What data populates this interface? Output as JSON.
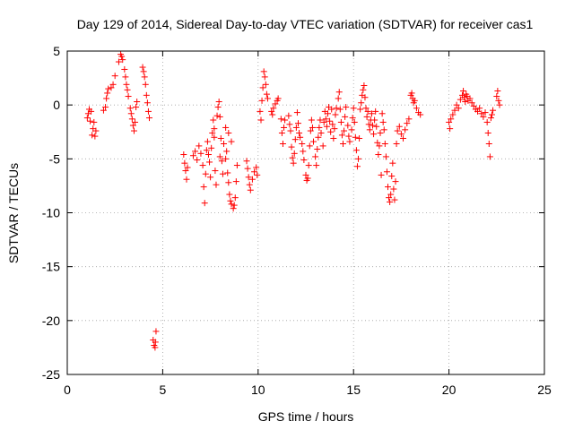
{
  "chart_data": {
    "type": "scatter",
    "title": "Day 129 of 2014, Sidereal Day-to-day VTEC variation (SDTVAR) for receiver cas1",
    "xlabel": "GPS time / hours",
    "ylabel": "SDTVAR / TECUs",
    "xlim": [
      0,
      25
    ],
    "ylim": [
      -25,
      5
    ],
    "xticks": [
      "0",
      "5",
      "10",
      "15",
      "20",
      "25"
    ],
    "yticks": [
      "5",
      "0",
      "-5",
      "-10",
      "-15",
      "-20",
      "-25"
    ],
    "grid": true,
    "marker": "+",
    "marker_color": "#ff0000",
    "series": [
      {
        "name": "SDTVAR",
        "points": [
          [
            1.05,
            -1.2
          ],
          [
            1.1,
            -0.8
          ],
          [
            1.15,
            -0.4
          ],
          [
            1.2,
            -1.5
          ],
          [
            1.25,
            -0.6
          ],
          [
            1.3,
            -2.8
          ],
          [
            1.35,
            -2.2
          ],
          [
            1.4,
            -1.6
          ],
          [
            1.45,
            -2.9
          ],
          [
            1.5,
            -2.4
          ],
          [
            1.9,
            -0.5
          ],
          [
            2.0,
            -0.2
          ],
          [
            2.05,
            0.6
          ],
          [
            2.1,
            1.1
          ],
          [
            2.15,
            1.5
          ],
          [
            2.3,
            1.6
          ],
          [
            2.4,
            1.9
          ],
          [
            2.5,
            2.7
          ],
          [
            2.7,
            4.0
          ],
          [
            2.8,
            4.7
          ],
          [
            2.85,
            4.5
          ],
          [
            2.9,
            4.2
          ],
          [
            3.0,
            3.3
          ],
          [
            3.05,
            2.6
          ],
          [
            3.1,
            1.9
          ],
          [
            3.15,
            1.4
          ],
          [
            3.2,
            0.8
          ],
          [
            3.3,
            -0.3
          ],
          [
            3.35,
            -0.8
          ],
          [
            3.4,
            -1.3
          ],
          [
            3.45,
            -1.9
          ],
          [
            3.5,
            -2.4
          ],
          [
            3.55,
            -1.6
          ],
          [
            3.6,
            -0.2
          ],
          [
            3.65,
            0.3
          ],
          [
            3.95,
            3.5
          ],
          [
            4.0,
            3.1
          ],
          [
            4.05,
            2.6
          ],
          [
            4.1,
            1.9
          ],
          [
            4.15,
            0.9
          ],
          [
            4.2,
            0.2
          ],
          [
            4.25,
            -0.6
          ],
          [
            4.3,
            -1.2
          ],
          [
            4.5,
            -21.8
          ],
          [
            4.55,
            -22.3
          ],
          [
            4.6,
            -22.5
          ],
          [
            4.62,
            -22.0
          ],
          [
            4.65,
            -21.0
          ],
          [
            6.1,
            -4.6
          ],
          [
            6.15,
            -5.4
          ],
          [
            6.2,
            -6.1
          ],
          [
            6.25,
            -6.9
          ],
          [
            6.3,
            -5.8
          ],
          [
            6.6,
            -4.7
          ],
          [
            6.7,
            -4.3
          ],
          [
            6.8,
            -5.1
          ],
          [
            6.9,
            -3.8
          ],
          [
            7.0,
            -4.5
          ],
          [
            7.1,
            -5.6
          ],
          [
            7.15,
            -7.6
          ],
          [
            7.2,
            -9.1
          ],
          [
            7.25,
            -6.4
          ],
          [
            7.3,
            -4.2
          ],
          [
            7.35,
            -3.4
          ],
          [
            7.45,
            -5.3
          ],
          [
            7.55,
            -4.0
          ],
          [
            7.6,
            -2.6
          ],
          [
            7.65,
            -1.4
          ],
          [
            7.7,
            -2.2
          ],
          [
            7.75,
            -6.1
          ],
          [
            7.8,
            -7.4
          ],
          [
            7.85,
            -1.0
          ],
          [
            7.9,
            -0.2
          ],
          [
            7.95,
            0.3
          ],
          [
            8.0,
            -1.1
          ],
          [
            8.05,
            -3.1
          ],
          [
            8.1,
            -5.2
          ],
          [
            8.2,
            -3.6
          ],
          [
            8.3,
            -2.1
          ],
          [
            8.35,
            -4.3
          ],
          [
            8.4,
            -6.3
          ],
          [
            8.45,
            -7.2
          ],
          [
            8.5,
            -8.3
          ],
          [
            8.55,
            -8.9
          ],
          [
            8.6,
            -9.2
          ],
          [
            8.7,
            -9.6
          ],
          [
            8.75,
            -9.3
          ],
          [
            8.8,
            -8.6
          ],
          [
            8.85,
            -7.1
          ],
          [
            8.3,
            -5.0
          ],
          [
            8.15,
            -6.4
          ],
          [
            8.0,
            -4.8
          ],
          [
            7.7,
            -3.0
          ],
          [
            7.5,
            -6.7
          ],
          [
            7.4,
            -4.6
          ],
          [
            8.45,
            -2.6
          ],
          [
            8.6,
            -3.4
          ],
          [
            8.9,
            -5.6
          ],
          [
            9.4,
            -5.2
          ],
          [
            9.45,
            -5.9
          ],
          [
            9.5,
            -6.7
          ],
          [
            9.55,
            -7.4
          ],
          [
            9.6,
            -7.9
          ],
          [
            9.7,
            -6.9
          ],
          [
            9.8,
            -6.2
          ],
          [
            9.9,
            -5.8
          ],
          [
            9.95,
            -6.5
          ],
          [
            10.1,
            -0.6
          ],
          [
            10.15,
            -1.4
          ],
          [
            10.2,
            0.4
          ],
          [
            10.25,
            1.6
          ],
          [
            10.3,
            3.1
          ],
          [
            10.35,
            2.6
          ],
          [
            10.4,
            1.9
          ],
          [
            10.45,
            1.0
          ],
          [
            10.5,
            0.6
          ],
          [
            10.7,
            -0.6
          ],
          [
            10.75,
            -0.9
          ],
          [
            10.8,
            -0.3
          ],
          [
            10.9,
            0.1
          ],
          [
            11.0,
            0.4
          ],
          [
            11.05,
            0.6
          ],
          [
            11.2,
            -1.3
          ],
          [
            11.25,
            -2.6
          ],
          [
            11.3,
            -3.6
          ],
          [
            11.35,
            -2.1
          ],
          [
            11.4,
            -1.4
          ],
          [
            11.6,
            -1.0
          ],
          [
            11.65,
            -1.8
          ],
          [
            11.7,
            -2.4
          ],
          [
            11.75,
            -3.9
          ],
          [
            11.8,
            -4.9
          ],
          [
            11.85,
            -5.4
          ],
          [
            11.9,
            -4.5
          ],
          [
            11.95,
            -3.2
          ],
          [
            12.0,
            -2.1
          ],
          [
            12.05,
            -0.7
          ],
          [
            12.1,
            -1.7
          ],
          [
            12.15,
            -2.6
          ],
          [
            12.2,
            -3.0
          ],
          [
            12.3,
            -3.6
          ],
          [
            12.35,
            -4.3
          ],
          [
            12.4,
            -5.1
          ],
          [
            12.5,
            -6.5
          ],
          [
            12.55,
            -7.0
          ],
          [
            12.6,
            -6.8
          ],
          [
            12.65,
            -5.6
          ],
          [
            12.7,
            -3.8
          ],
          [
            12.75,
            -2.4
          ],
          [
            12.8,
            -1.4
          ],
          [
            12.85,
            -2.1
          ],
          [
            12.9,
            -3.4
          ],
          [
            13.0,
            -4.8
          ],
          [
            13.05,
            -5.6
          ],
          [
            13.1,
            -4.1
          ],
          [
            13.15,
            -3.0
          ],
          [
            13.2,
            -2.1
          ],
          [
            13.25,
            -1.4
          ],
          [
            13.3,
            -2.6
          ],
          [
            13.4,
            -3.8
          ],
          [
            13.45,
            -1.6
          ],
          [
            13.5,
            -0.6
          ],
          [
            13.55,
            -1.3
          ],
          [
            13.6,
            -2.0
          ],
          [
            13.65,
            -0.8
          ],
          [
            13.7,
            -0.2
          ],
          [
            13.75,
            -1.5
          ],
          [
            13.8,
            -2.5
          ],
          [
            13.85,
            -0.4
          ],
          [
            13.9,
            -1.8
          ],
          [
            13.95,
            -3.1
          ],
          [
            14.0,
            -2.2
          ],
          [
            14.05,
            -0.9
          ],
          [
            14.1,
            -0.3
          ],
          [
            14.2,
            0.6
          ],
          [
            14.25,
            1.2
          ],
          [
            14.3,
            -0.4
          ],
          [
            14.35,
            -1.6
          ],
          [
            14.4,
            -2.8
          ],
          [
            14.45,
            -3.6
          ],
          [
            14.5,
            -2.4
          ],
          [
            14.55,
            -1.1
          ],
          [
            14.6,
            -0.2
          ],
          [
            14.7,
            -1.9
          ],
          [
            14.75,
            -2.9
          ],
          [
            14.8,
            -3.4
          ],
          [
            14.9,
            -2.3
          ],
          [
            14.95,
            -1.2
          ],
          [
            15.0,
            -0.3
          ],
          [
            15.05,
            -1.6
          ],
          [
            15.1,
            -3.0
          ],
          [
            15.15,
            -4.2
          ],
          [
            15.2,
            -5.7
          ],
          [
            15.25,
            -5.0
          ],
          [
            15.3,
            -3.1
          ],
          [
            15.35,
            -0.4
          ],
          [
            15.4,
            0.2
          ],
          [
            15.45,
            0.9
          ],
          [
            15.5,
            1.4
          ],
          [
            15.55,
            1.8
          ],
          [
            15.6,
            0.7
          ],
          [
            15.65,
            -0.3
          ],
          [
            15.7,
            -1.1
          ],
          [
            15.75,
            -0.6
          ],
          [
            15.8,
            -1.8
          ],
          [
            15.85,
            -2.3
          ],
          [
            15.9,
            -1.4
          ],
          [
            15.95,
            -0.8
          ],
          [
            16.0,
            -1.9
          ],
          [
            16.05,
            -2.7
          ],
          [
            16.1,
            -1.4
          ],
          [
            16.15,
            -0.6
          ],
          [
            16.2,
            -2.0
          ],
          [
            16.25,
            -3.5
          ],
          [
            16.3,
            -4.6
          ],
          [
            16.35,
            -3.8
          ],
          [
            16.4,
            -2.6
          ],
          [
            16.45,
            -6.5
          ],
          [
            16.5,
            -0.8
          ],
          [
            16.55,
            -1.6
          ],
          [
            16.6,
            -2.3
          ],
          [
            16.65,
            -3.6
          ],
          [
            16.7,
            -4.8
          ],
          [
            16.75,
            -6.2
          ],
          [
            16.8,
            -7.6
          ],
          [
            16.85,
            -8.6
          ],
          [
            16.9,
            -9.0
          ],
          [
            16.95,
            -8.3
          ],
          [
            17.0,
            -6.6
          ],
          [
            17.05,
            -5.4
          ],
          [
            17.1,
            -7.8
          ],
          [
            17.15,
            -8.8
          ],
          [
            17.2,
            -7.1
          ],
          [
            17.25,
            -3.6
          ],
          [
            17.3,
            -2.4
          ],
          [
            17.4,
            -2.0
          ],
          [
            17.5,
            -2.7
          ],
          [
            17.6,
            -3.1
          ],
          [
            17.7,
            -2.3
          ],
          [
            17.8,
            -1.7
          ],
          [
            17.9,
            -1.3
          ],
          [
            18.0,
            0.9
          ],
          [
            18.05,
            1.1
          ],
          [
            18.1,
            0.6
          ],
          [
            18.15,
            0.2
          ],
          [
            18.2,
            0.4
          ],
          [
            18.3,
            -0.3
          ],
          [
            18.4,
            -0.7
          ],
          [
            18.5,
            -0.9
          ],
          [
            20.0,
            -1.6
          ],
          [
            20.05,
            -2.2
          ],
          [
            20.1,
            -1.3
          ],
          [
            20.2,
            -0.9
          ],
          [
            20.3,
            -0.5
          ],
          [
            20.4,
            0.0
          ],
          [
            20.5,
            -0.3
          ],
          [
            20.6,
            0.5
          ],
          [
            20.7,
            0.9
          ],
          [
            20.75,
            1.3
          ],
          [
            20.8,
            0.7
          ],
          [
            20.85,
            0.3
          ],
          [
            20.9,
            1.0
          ],
          [
            20.95,
            0.8
          ],
          [
            21.0,
            0.4
          ],
          [
            21.1,
            0.6
          ],
          [
            21.2,
            0.2
          ],
          [
            21.3,
            -0.1
          ],
          [
            21.4,
            -0.4
          ],
          [
            21.5,
            -0.6
          ],
          [
            21.6,
            -0.3
          ],
          [
            21.7,
            -0.8
          ],
          [
            21.8,
            -1.1
          ],
          [
            21.9,
            -0.7
          ],
          [
            22.0,
            -1.6
          ],
          [
            22.05,
            -2.6
          ],
          [
            22.1,
            -3.6
          ],
          [
            22.15,
            -4.8
          ],
          [
            22.2,
            -1.2
          ],
          [
            22.25,
            -0.9
          ],
          [
            22.3,
            -0.5
          ],
          [
            22.5,
            0.8
          ],
          [
            22.55,
            1.3
          ],
          [
            22.6,
            0.4
          ],
          [
            22.65,
            0.0
          ]
        ]
      }
    ]
  }
}
